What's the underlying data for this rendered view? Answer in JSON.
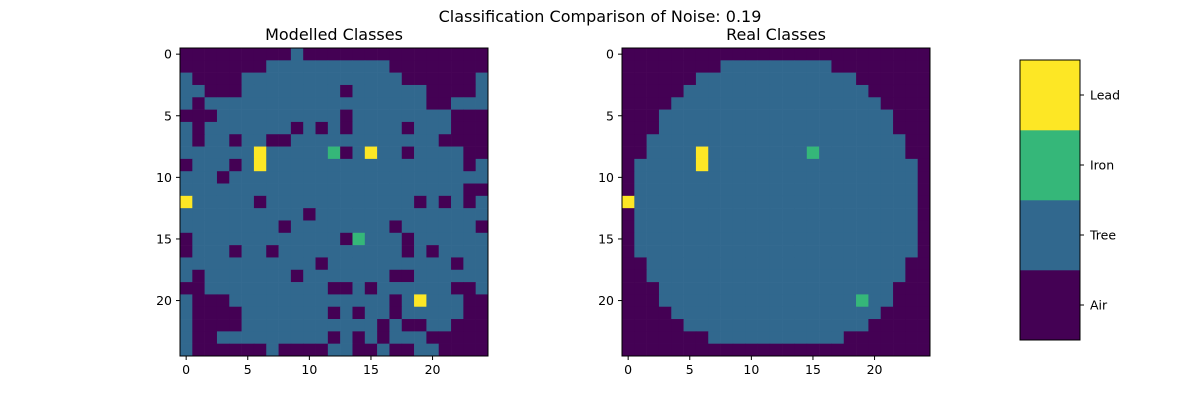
{
  "figure": {
    "title": "Classification Comparison of Noise: 0.19"
  },
  "chart_data": [
    {
      "type": "heatmap",
      "title": "Modelled Classes",
      "xlabel": "",
      "ylabel": "",
      "xlim": [
        -0.5,
        24.5
      ],
      "ylim": [
        24.5,
        -0.5
      ],
      "xticks": [
        0,
        5,
        10,
        15,
        20
      ],
      "yticks": [
        0,
        5,
        10,
        15,
        20
      ],
      "grid": false,
      "rows": [
        "0000000001000000000000000",
        "0000000111111111100000000",
        "1000011111111111110100001",
        "1100111111111111111100001",
        "1011111111111111111111111",
        "1001111111111111111111000",
        "1011111111111111111111000",
        "1011111111111111111111000",
        "1111111111111111111111100",
        "1111111111111111111111111",
        "1111111111111111111111111",
        "1111111111111111111111111",
        "1111111111111111111111111",
        "1111111111111111111111111",
        "1111111111111111111111111",
        "1111111111111111111111111",
        "1111111111111111111111111",
        "1111111111111111111111111",
        "1111111111111111111111111",
        "1011111111111111111111111",
        "1000111111111111111111100",
        "1000011111111111111111100",
        "1000011111111111111111000",
        "1001111111111111111111000",
        "1000000111111111111110000"
      ],
      "noise_cells": [
        [
          1,
          4
        ],
        [
          2,
          1
        ],
        [
          2,
          2
        ],
        [
          2,
          19
        ],
        [
          3,
          2
        ],
        [
          3,
          3
        ],
        [
          3,
          4
        ],
        [
          3,
          13
        ],
        [
          4,
          1
        ],
        [
          4,
          20
        ],
        [
          4,
          21
        ],
        [
          5,
          0
        ],
        [
          5,
          2
        ],
        [
          5,
          13
        ],
        [
          6,
          9
        ],
        [
          6,
          11
        ],
        [
          6,
          13
        ],
        [
          6,
          18
        ],
        [
          7,
          4
        ],
        [
          7,
          7
        ],
        [
          7,
          8
        ],
        [
          7,
          21
        ],
        [
          7,
          22
        ],
        [
          8,
          13
        ],
        [
          8,
          18
        ],
        [
          8,
          24
        ],
        [
          9,
          0
        ],
        [
          9,
          4
        ],
        [
          9,
          23
        ],
        [
          10,
          3
        ],
        [
          11,
          23
        ],
        [
          11,
          24
        ],
        [
          12,
          6
        ],
        [
          12,
          19
        ],
        [
          12,
          21
        ],
        [
          12,
          23
        ],
        [
          13,
          10
        ],
        [
          14,
          8
        ],
        [
          14,
          17
        ],
        [
          14,
          24
        ],
        [
          15,
          0
        ],
        [
          15,
          13
        ],
        [
          15,
          18
        ],
        [
          16,
          0
        ],
        [
          16,
          4
        ],
        [
          16,
          7
        ],
        [
          16,
          18
        ],
        [
          16,
          20
        ],
        [
          17,
          11
        ],
        [
          17,
          22
        ],
        [
          18,
          1
        ],
        [
          18,
          9
        ],
        [
          18,
          17
        ],
        [
          18,
          18
        ],
        [
          19,
          0
        ],
        [
          19,
          12
        ],
        [
          19,
          13
        ],
        [
          19,
          15
        ],
        [
          19,
          22
        ],
        [
          19,
          23
        ],
        [
          20,
          2
        ],
        [
          20,
          3
        ],
        [
          20,
          17
        ],
        [
          20,
          24
        ],
        [
          21,
          4
        ],
        [
          21,
          12
        ],
        [
          21,
          14
        ],
        [
          21,
          17
        ],
        [
          22,
          1
        ],
        [
          22,
          3
        ],
        [
          22,
          4
        ],
        [
          22,
          16
        ],
        [
          22,
          18
        ],
        [
          22,
          19
        ],
        [
          23,
          1
        ],
        [
          23,
          2
        ],
        [
          23,
          12
        ],
        [
          23,
          14
        ],
        [
          23,
          16
        ],
        [
          23,
          20
        ],
        [
          23,
          21
        ],
        [
          24,
          8
        ],
        [
          24,
          9
        ],
        [
          24,
          10
        ],
        [
          24,
          11
        ],
        [
          24,
          14
        ],
        [
          24,
          15
        ],
        [
          24,
          17
        ],
        [
          24,
          18
        ],
        [
          24,
          22
        ]
      ],
      "special_cells": [
        [
          8,
          6,
          3
        ],
        [
          9,
          6,
          3
        ],
        [
          8,
          15,
          3
        ],
        [
          12,
          0,
          3
        ],
        [
          20,
          19,
          3
        ],
        [
          8,
          12,
          2
        ],
        [
          15,
          14,
          2
        ]
      ]
    },
    {
      "type": "heatmap",
      "title": "Real Classes",
      "xlabel": "",
      "ylabel": "",
      "xlim": [
        -0.5,
        24.5
      ],
      "ylim": [
        24.5,
        -0.5
      ],
      "xticks": [
        0,
        5,
        10,
        15,
        20
      ],
      "yticks": [
        0,
        5,
        10,
        15,
        20
      ],
      "grid": false,
      "rows": [
        "0000000000000000000000000",
        "0000000011111111100000000",
        "0000001111111111111000000",
        "0000011111111111111100000",
        "0000111111111111111110000",
        "0001111111111111111111000",
        "0001111111111111111111000",
        "0011111111111111111111100",
        "0011111111111111111111100",
        "0111111111111111111111110",
        "0111111111111111111111110",
        "0111111111111111111111110",
        "0111111111111111111111110",
        "0111111111111111111111110",
        "0111111111111111111111110",
        "0111111111111111111111110",
        "0111111111111111111111110",
        "0011111111111111111111100",
        "0011111111111111111111100",
        "0001111111111111111111000",
        "0001111111111111111111000",
        "0000111111111111111110000",
        "0000011111111111111100000",
        "0000000111111111110000000",
        "0000000000000000000000000"
      ],
      "noise_cells": [],
      "special_cells": [
        [
          8,
          6,
          3
        ],
        [
          9,
          6,
          3
        ],
        [
          8,
          15,
          2
        ],
        [
          12,
          0,
          3
        ],
        [
          20,
          19,
          2
        ]
      ]
    }
  ],
  "colorbar": {
    "labels": [
      "Air",
      "Tree",
      "Iron",
      "Lead"
    ],
    "colors": [
      "#440154",
      "#31688e",
      "#35b779",
      "#fde725"
    ]
  }
}
